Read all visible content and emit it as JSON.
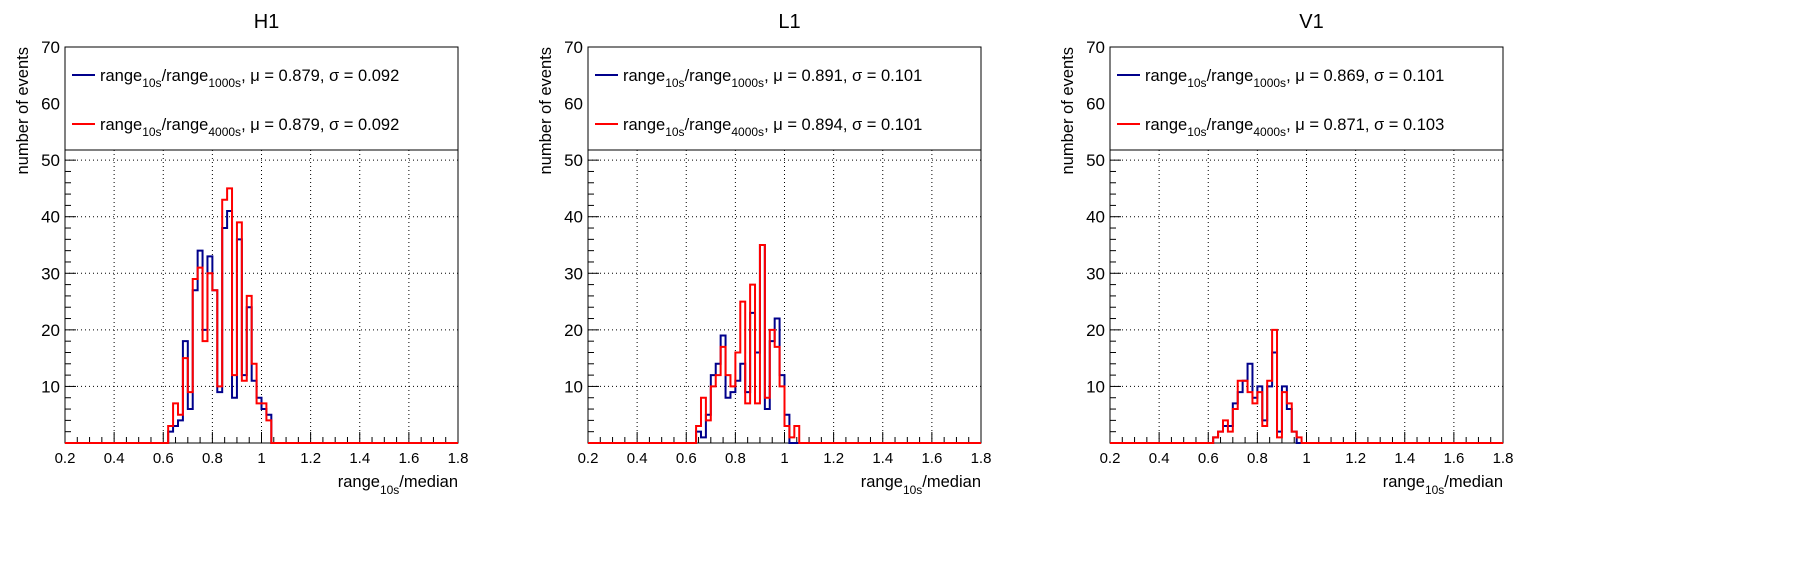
{
  "chart_data": [
    {
      "type": "histogram",
      "title": "H1",
      "xlabel": {
        "main": "range",
        "sub": "10s",
        "suffix": "/median"
      },
      "ylabel": "number of events",
      "xlim": [
        0.2,
        1.8
      ],
      "ylim": [
        0,
        70
      ],
      "x_ticks": [
        "0.2",
        "0.4",
        "0.6",
        "0.8",
        "1",
        "1.2",
        "1.4",
        "1.6",
        "1.8"
      ],
      "y_ticks": [
        "10",
        "20",
        "30",
        "40",
        "50",
        "60",
        "70"
      ],
      "grid": true,
      "legend_position": "top",
      "bin_start": 0.2,
      "bin_width": 0.02,
      "series": [
        {
          "name": {
            "a": "range",
            "a_sub": "10s",
            "b": "/range",
            "b_sub": "1000s",
            "stats": ", μ = 0.879, σ = 0.092"
          },
          "color": "#00008b",
          "values": [
            0,
            0,
            0,
            0,
            0,
            0,
            0,
            0,
            0,
            0,
            0,
            0,
            0,
            0,
            0,
            0,
            0,
            0,
            0,
            0,
            0,
            2,
            3,
            4,
            18,
            6,
            27,
            34,
            20,
            33,
            27,
            9,
            38,
            41,
            8,
            36,
            12,
            24,
            11,
            8,
            6,
            5,
            0,
            0,
            0,
            0,
            0,
            0,
            0,
            0,
            0,
            0,
            0,
            0,
            0,
            0,
            0,
            0,
            0,
            0,
            0,
            0,
            0,
            0,
            0,
            0,
            0,
            0,
            0,
            0,
            0,
            0,
            0,
            0,
            0,
            0,
            0,
            0,
            0,
            0
          ]
        },
        {
          "name": {
            "a": "range",
            "a_sub": "10s",
            "b": "/range",
            "b_sub": "4000s",
            "stats": ", μ = 0.879, σ = 0.092"
          },
          "color": "#ff0000",
          "values": [
            0,
            0,
            0,
            0,
            0,
            0,
            0,
            0,
            0,
            0,
            0,
            0,
            0,
            0,
            0,
            0,
            0,
            0,
            0,
            0,
            0,
            3,
            7,
            5,
            15,
            9,
            29,
            31,
            18,
            30,
            27,
            10,
            43,
            45,
            12,
            39,
            11,
            26,
            14,
            7,
            7,
            4,
            0,
            0,
            0,
            0,
            0,
            0,
            0,
            0,
            0,
            0,
            0,
            0,
            0,
            0,
            0,
            0,
            0,
            0,
            0,
            0,
            0,
            0,
            0,
            0,
            0,
            0,
            0,
            0,
            0,
            0,
            0,
            0,
            0,
            0,
            0,
            0,
            0,
            0
          ]
        }
      ]
    },
    {
      "type": "histogram",
      "title": "L1",
      "xlabel": {
        "main": "range",
        "sub": "10s",
        "suffix": "/median"
      },
      "ylabel": "number of events",
      "xlim": [
        0.2,
        1.8
      ],
      "ylim": [
        0,
        70
      ],
      "x_ticks": [
        "0.2",
        "0.4",
        "0.6",
        "0.8",
        "1",
        "1.2",
        "1.4",
        "1.6",
        "1.8"
      ],
      "y_ticks": [
        "10",
        "20",
        "30",
        "40",
        "50",
        "60",
        "70"
      ],
      "grid": true,
      "legend_position": "top",
      "bin_start": 0.2,
      "bin_width": 0.02,
      "series": [
        {
          "name": {
            "a": "range",
            "a_sub": "10s",
            "b": "/range",
            "b_sub": "1000s",
            "stats": ", μ = 0.891, σ = 0.101"
          },
          "color": "#00008b",
          "values": [
            0,
            0,
            0,
            0,
            0,
            0,
            0,
            0,
            0,
            0,
            0,
            0,
            0,
            0,
            0,
            0,
            0,
            0,
            0,
            0,
            0,
            0,
            2,
            1,
            5,
            12,
            14,
            19,
            8,
            9,
            11,
            14,
            9,
            23,
            16,
            35,
            6,
            18,
            22,
            12,
            5,
            0,
            0,
            0,
            0,
            0,
            0,
            0,
            0,
            0,
            0,
            0,
            0,
            0,
            0,
            0,
            0,
            0,
            0,
            0,
            0,
            0,
            0,
            0,
            0,
            0,
            0,
            0,
            0,
            0,
            0,
            0,
            0,
            0,
            0,
            0,
            0,
            0,
            0,
            0
          ]
        },
        {
          "name": {
            "a": "range",
            "a_sub": "10s",
            "b": "/range",
            "b_sub": "4000s",
            "stats": ", μ = 0.894, σ = 0.101"
          },
          "color": "#ff0000",
          "values": [
            0,
            0,
            0,
            0,
            0,
            0,
            0,
            0,
            0,
            0,
            0,
            0,
            0,
            0,
            0,
            0,
            0,
            0,
            0,
            0,
            0,
            0,
            3,
            8,
            4,
            10,
            12,
            17,
            12,
            10,
            16,
            25,
            7,
            28,
            7,
            35,
            8,
            20,
            17,
            10,
            3,
            1,
            3,
            0,
            0,
            0,
            0,
            0,
            0,
            0,
            0,
            0,
            0,
            0,
            0,
            0,
            0,
            0,
            0,
            0,
            0,
            0,
            0,
            0,
            0,
            0,
            0,
            0,
            0,
            0,
            0,
            0,
            0,
            0,
            0,
            0,
            0,
            0,
            0,
            0
          ]
        }
      ]
    },
    {
      "type": "histogram",
      "title": "V1",
      "xlabel": {
        "main": "range",
        "sub": "10s",
        "suffix": "/median"
      },
      "ylabel": "number of events",
      "xlim": [
        0.2,
        1.8
      ],
      "ylim": [
        0,
        70
      ],
      "x_ticks": [
        "0.2",
        "0.4",
        "0.6",
        "0.8",
        "1",
        "1.2",
        "1.4",
        "1.6",
        "1.8"
      ],
      "y_ticks": [
        "10",
        "20",
        "30",
        "40",
        "50",
        "60",
        "70"
      ],
      "grid": true,
      "legend_position": "top",
      "bin_start": 0.2,
      "bin_width": 0.02,
      "series": [
        {
          "name": {
            "a": "range",
            "a_sub": "10s",
            "b": "/range",
            "b_sub": "1000s",
            "stats": ", μ = 0.869, σ = 0.101"
          },
          "color": "#00008b",
          "values": [
            0,
            0,
            0,
            0,
            0,
            0,
            0,
            0,
            0,
            0,
            0,
            0,
            0,
            0,
            0,
            0,
            0,
            0,
            0,
            0,
            0,
            1,
            2,
            3,
            3,
            7,
            9,
            11,
            14,
            8,
            10,
            4,
            10,
            16,
            2,
            10,
            6,
            2,
            0,
            0,
            0,
            0,
            0,
            0,
            0,
            0,
            0,
            0,
            0,
            0,
            0,
            0,
            0,
            0,
            0,
            0,
            0,
            0,
            0,
            0,
            0,
            0,
            0,
            0,
            0,
            0,
            0,
            0,
            0,
            0,
            0,
            0,
            0,
            0,
            0,
            0,
            0,
            0,
            0,
            0
          ]
        },
        {
          "name": {
            "a": "range",
            "a_sub": "10s",
            "b": "/range",
            "b_sub": "4000s",
            "stats": ", μ = 0.871, σ = 0.103"
          },
          "color": "#ff0000",
          "values": [
            0,
            0,
            0,
            0,
            0,
            0,
            0,
            0,
            0,
            0,
            0,
            0,
            0,
            0,
            0,
            0,
            0,
            0,
            0,
            0,
            0,
            1,
            2,
            4,
            2,
            6,
            11,
            11,
            9,
            7,
            9,
            3,
            11,
            20,
            1,
            9,
            7,
            2,
            1,
            0,
            0,
            0,
            0,
            0,
            0,
            0,
            0,
            0,
            0,
            0,
            0,
            0,
            0,
            0,
            0,
            0,
            0,
            0,
            0,
            0,
            0,
            0,
            0,
            0,
            0,
            0,
            0,
            0,
            0,
            0,
            0,
            0,
            0,
            0,
            0,
            0,
            0,
            0,
            0,
            0
          ]
        }
      ]
    }
  ]
}
